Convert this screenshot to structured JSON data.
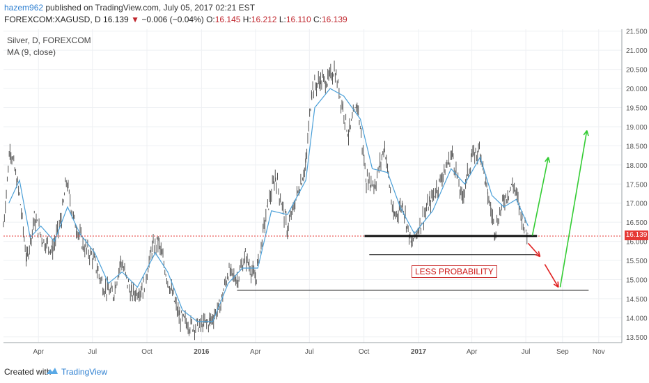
{
  "header": {
    "author": "hazem962",
    "published_text": " published on TradingView.com, July 05, 2017 02:21 EST",
    "symbol": "FOREXCOM:XAGUSD, D",
    "last": "16.139",
    "change_arrow": "▼",
    "change": "−0.006 (−0.04%)",
    "o_label": "O:",
    "o_value": "16.145",
    "h_label": "H:",
    "h_value": "16.212",
    "l_label": "L:",
    "l_value": "16.110",
    "c_label": "C:",
    "c_value": "16.139"
  },
  "legend": {
    "series_title": "Silver, D, FOREXCOM",
    "indicator": "MA (9, close)"
  },
  "annotation": {
    "text": "LESS PROBABILITY"
  },
  "price_label": "16.139",
  "footer": {
    "created_with": "Created with",
    "brand": "TradingView"
  },
  "colors": {
    "candle": "#555555",
    "ma": "#4a9fd8",
    "support_line": "#111111",
    "up_arrow": "#33cc33",
    "down_arrow": "#e02020",
    "price_line": "#e53935"
  },
  "chart_data": {
    "type": "line",
    "title": "Silver, D, FOREXCOM",
    "x_tick_labels": [
      "Apr",
      "Jul",
      "Oct",
      "2016",
      "Apr",
      "Jul",
      "Oct",
      "2017",
      "Apr",
      "Jul",
      "Sep",
      "Nov"
    ],
    "y_tick_labels": [
      "13.500",
      "14.000",
      "14.500",
      "15.000",
      "15.500",
      "16.000",
      "16.500",
      "17.000",
      "17.500",
      "18.000",
      "18.500",
      "19.000",
      "19.500",
      "20.000",
      "20.500",
      "21.000",
      "21.500"
    ],
    "ylim": [
      13.35,
      21.55
    ],
    "xlim": [
      "2015-02-01",
      "2017-12-10"
    ],
    "grid": true,
    "series": [
      {
        "name": "Silver",
        "points": [
          [
            "2015-02-01",
            16.4
          ],
          [
            "2015-02-12",
            18.5
          ],
          [
            "2015-02-28",
            17.2
          ],
          [
            "2015-03-12",
            15.5
          ],
          [
            "2015-03-25",
            16.6
          ],
          [
            "2015-04-10",
            16.0
          ],
          [
            "2015-04-25",
            15.8
          ],
          [
            "2015-05-10",
            16.6
          ],
          [
            "2015-05-18",
            17.6
          ],
          [
            "2015-05-30",
            16.6
          ],
          [
            "2015-06-15",
            15.9
          ],
          [
            "2015-07-01",
            15.6
          ],
          [
            "2015-07-20",
            14.8
          ],
          [
            "2015-08-05",
            14.6
          ],
          [
            "2015-08-18",
            15.5
          ],
          [
            "2015-09-05",
            14.6
          ],
          [
            "2015-09-25",
            14.8
          ],
          [
            "2015-10-10",
            15.8
          ],
          [
            "2015-10-20",
            16.0
          ],
          [
            "2015-11-05",
            15.0
          ],
          [
            "2015-11-25",
            14.0
          ],
          [
            "2015-12-14",
            13.8
          ],
          [
            "2015-12-31",
            13.8
          ],
          [
            "2016-01-15",
            13.9
          ],
          [
            "2016-02-01",
            14.3
          ],
          [
            "2016-02-15",
            15.2
          ],
          [
            "2016-03-01",
            15.0
          ],
          [
            "2016-03-15",
            15.6
          ],
          [
            "2016-04-01",
            15.0
          ],
          [
            "2016-04-20",
            16.8
          ],
          [
            "2016-05-05",
            17.7
          ],
          [
            "2016-05-25",
            16.3
          ],
          [
            "2016-06-10",
            17.2
          ],
          [
            "2016-06-25",
            18.0
          ],
          [
            "2016-07-05",
            20.0
          ],
          [
            "2016-07-20",
            20.2
          ],
          [
            "2016-08-01",
            20.2
          ],
          [
            "2016-08-12",
            20.5
          ],
          [
            "2016-08-25",
            19.6
          ],
          [
            "2016-09-05",
            18.8
          ],
          [
            "2016-09-20",
            19.6
          ],
          [
            "2016-10-05",
            17.6
          ],
          [
            "2016-10-20",
            17.5
          ],
          [
            "2016-11-05",
            18.5
          ],
          [
            "2016-11-20",
            16.6
          ],
          [
            "2016-12-05",
            17.0
          ],
          [
            "2016-12-20",
            15.9
          ],
          [
            "2017-01-05",
            16.5
          ],
          [
            "2017-01-20",
            17.0
          ],
          [
            "2017-02-10",
            17.7
          ],
          [
            "2017-02-27",
            18.3
          ],
          [
            "2017-03-15",
            17.1
          ],
          [
            "2017-04-01",
            18.2
          ],
          [
            "2017-04-15",
            18.4
          ],
          [
            "2017-04-28",
            17.2
          ],
          [
            "2017-05-10",
            16.3
          ],
          [
            "2017-05-25",
            17.1
          ],
          [
            "2017-06-10",
            17.5
          ],
          [
            "2017-06-25",
            16.6
          ],
          [
            "2017-07-05",
            16.139
          ]
        ]
      },
      {
        "name": "MA (9, close)",
        "points": [
          [
            "2015-02-10",
            17.0
          ],
          [
            "2015-02-28",
            17.6
          ],
          [
            "2015-03-18",
            16.1
          ],
          [
            "2015-04-05",
            16.4
          ],
          [
            "2015-04-28",
            16.0
          ],
          [
            "2015-05-20",
            16.9
          ],
          [
            "2015-06-10",
            16.2
          ],
          [
            "2015-07-05",
            15.7
          ],
          [
            "2015-07-28",
            14.9
          ],
          [
            "2015-08-20",
            15.2
          ],
          [
            "2015-09-15",
            14.8
          ],
          [
            "2015-10-15",
            15.7
          ],
          [
            "2015-11-05",
            15.2
          ],
          [
            "2015-11-30",
            14.2
          ],
          [
            "2015-12-25",
            13.9
          ],
          [
            "2016-01-20",
            13.9
          ],
          [
            "2016-02-15",
            14.9
          ],
          [
            "2016-03-10",
            15.3
          ],
          [
            "2016-04-05",
            15.3
          ],
          [
            "2016-04-28",
            16.8
          ],
          [
            "2016-05-25",
            16.7
          ],
          [
            "2016-06-25",
            17.6
          ],
          [
            "2016-07-10",
            19.5
          ],
          [
            "2016-08-05",
            20.0
          ],
          [
            "2016-08-28",
            19.8
          ],
          [
            "2016-09-25",
            19.2
          ],
          [
            "2016-10-15",
            17.9
          ],
          [
            "2016-11-10",
            17.8
          ],
          [
            "2016-12-01",
            16.9
          ],
          [
            "2016-12-25",
            16.2
          ],
          [
            "2017-01-25",
            16.8
          ],
          [
            "2017-02-25",
            17.9
          ],
          [
            "2017-03-20",
            17.5
          ],
          [
            "2017-04-15",
            18.2
          ],
          [
            "2017-05-05",
            17.2
          ],
          [
            "2017-05-25",
            16.9
          ],
          [
            "2017-06-15",
            17.1
          ],
          [
            "2017-07-05",
            16.4
          ]
        ]
      }
    ],
    "horizontal_lines": [
      {
        "start": "2016-10-02",
        "end": "2017-07-20",
        "y": 16.14,
        "weight": "thick"
      },
      {
        "start": "2016-10-10",
        "end": "2017-07-20",
        "y": 15.65,
        "weight": "thin"
      },
      {
        "start": "2016-03-01",
        "end": "2017-10-15",
        "y": 14.72,
        "weight": "thin"
      }
    ],
    "arrows": [
      {
        "color": "green",
        "from": [
          "2017-07-12",
          16.15
        ],
        "to": [
          "2017-08-08",
          18.2
        ]
      },
      {
        "color": "red",
        "from": [
          "2017-07-05",
          15.95
        ],
        "to": [
          "2017-07-25",
          15.6
        ]
      },
      {
        "color": "red",
        "from": [
          "2017-08-02",
          15.4
        ],
        "to": [
          "2017-08-25",
          14.8
        ]
      },
      {
        "color": "green",
        "from": [
          "2017-08-28",
          14.8
        ],
        "to": [
          "2017-10-12",
          18.9
        ]
      }
    ],
    "last_price_line": 16.139
  }
}
